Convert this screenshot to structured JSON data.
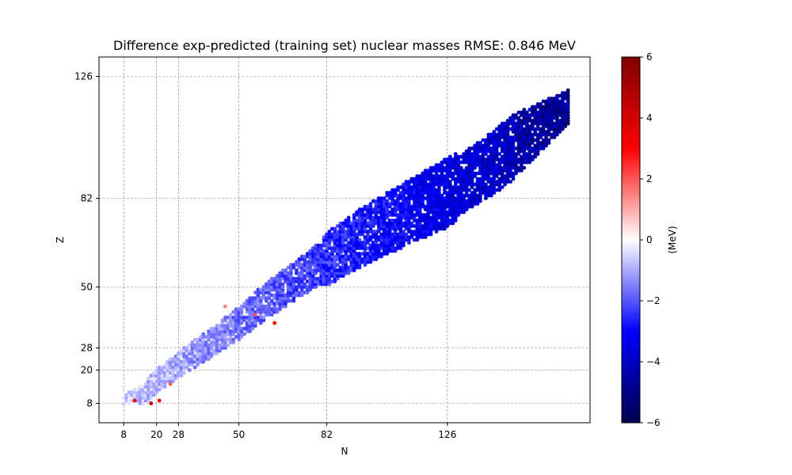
{
  "chart_data": {
    "type": "scatter",
    "title": "Difference exp-predicted (training set) nuclear masses  RMSE: 0.846 MeV",
    "xlabel": "N",
    "ylabel": "Z",
    "xlim": [
      -1,
      178
    ],
    "ylim": [
      1,
      133
    ],
    "xticks": [
      8,
      20,
      28,
      50,
      82,
      126
    ],
    "yticks": [
      8,
      20,
      28,
      50,
      82,
      126
    ],
    "grid": true,
    "colorbar": {
      "label": "(MeV)",
      "range": [
        -6,
        6
      ],
      "ticks": [
        -6,
        -4,
        -2,
        0,
        2,
        4,
        6
      ],
      "tick_labels": [
        "−6",
        "−4",
        "−2",
        "0",
        "2",
        "4",
        "6"
      ],
      "colormap": "seismic",
      "colors": [
        "#00004c",
        "#0000ff",
        "#ffffff",
        "#ff0000",
        "#7f0000"
      ]
    },
    "valley": [
      [
        8,
        8
      ],
      [
        15,
        11
      ],
      [
        20,
        16
      ],
      [
        28,
        22
      ],
      [
        40,
        30
      ],
      [
        50,
        37
      ],
      [
        60,
        45
      ],
      [
        70,
        52
      ],
      [
        82,
        60
      ],
      [
        95,
        68
      ],
      [
        110,
        76
      ],
      [
        126,
        84
      ],
      [
        140,
        93
      ],
      [
        155,
        104
      ],
      [
        170,
        115
      ]
    ],
    "highlight_points": [
      [
        12,
        9,
        3.0
      ],
      [
        18,
        8,
        4.5
      ],
      [
        21,
        9,
        3.5
      ],
      [
        25,
        15,
        2.0
      ],
      [
        45,
        43,
        1.5
      ],
      [
        63,
        37,
        3.0
      ],
      [
        56,
        40,
        2.0
      ]
    ]
  }
}
